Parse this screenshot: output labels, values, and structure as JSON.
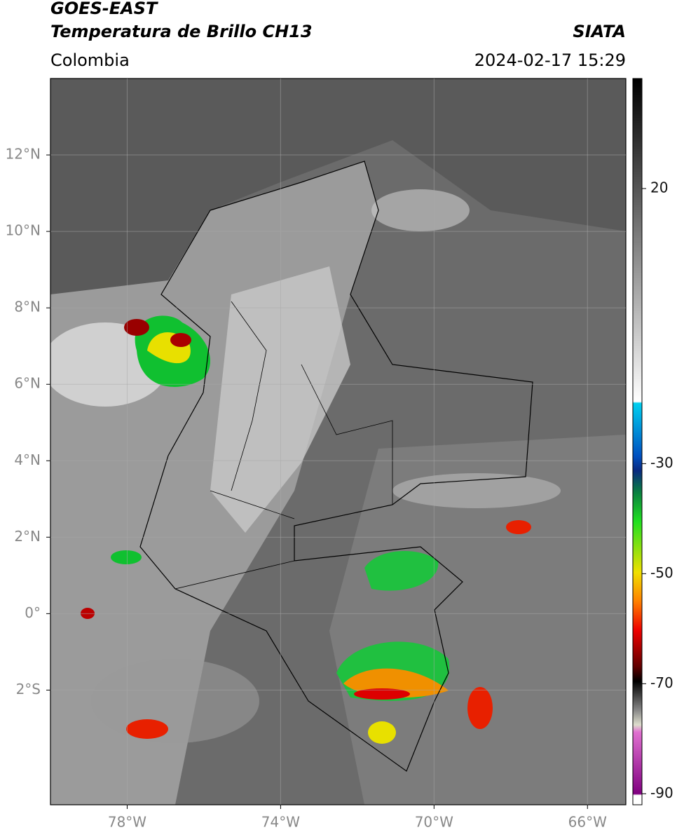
{
  "header": {
    "title": "GOES-EAST",
    "subtitle": "Temperatura de Brillo CH13",
    "source": "SIATA",
    "region": "Colombia",
    "timestamp": "2024-02-17 15:29"
  },
  "map": {
    "xlim": [
      -80,
      -65
    ],
    "ylim": [
      -5,
      14
    ],
    "lat_ticks": [
      {
        "value": 12,
        "label": "12°N"
      },
      {
        "value": 10,
        "label": "10°N"
      },
      {
        "value": 8,
        "label": "8°N"
      },
      {
        "value": 6,
        "label": "6°N"
      },
      {
        "value": 4,
        "label": "4°N"
      },
      {
        "value": 2,
        "label": "2°N"
      },
      {
        "value": 0,
        "label": "0°"
      },
      {
        "value": -2,
        "label": "2°S"
      }
    ],
    "lon_ticks": [
      {
        "value": -78,
        "label": "78°W"
      },
      {
        "value": -74,
        "label": "74°W"
      },
      {
        "value": -70,
        "label": "70°W"
      },
      {
        "value": -66,
        "label": "66°W"
      }
    ]
  },
  "colorbar": {
    "lim": [
      -92,
      40
    ],
    "ticks": [
      20,
      -30,
      -50,
      -70,
      -90
    ]
  }
}
